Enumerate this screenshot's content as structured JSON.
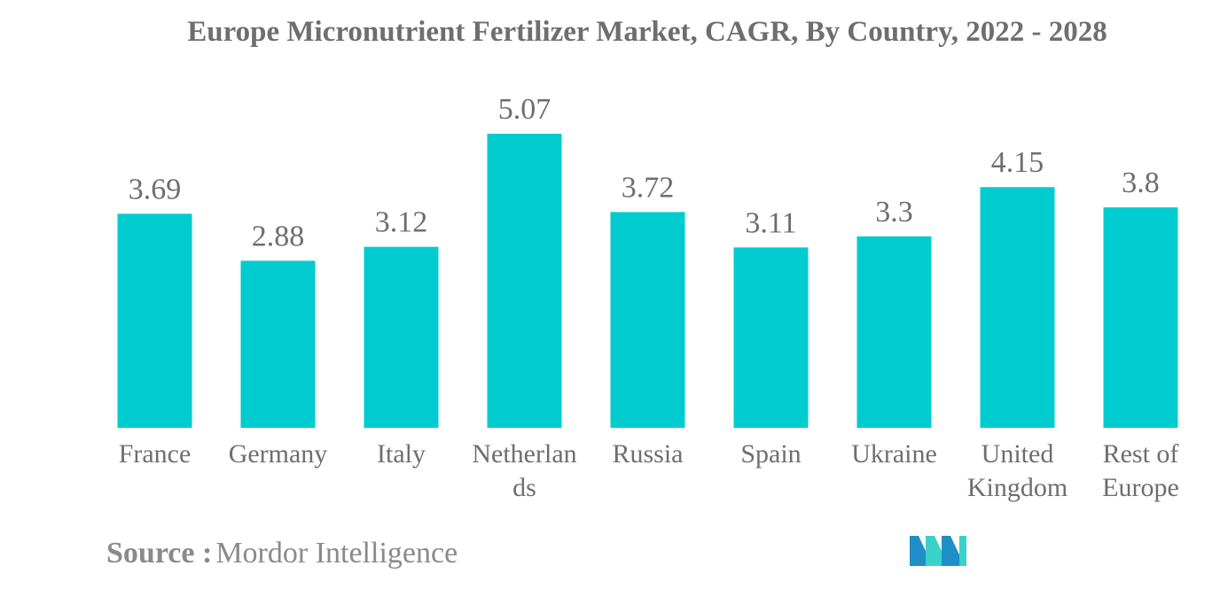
{
  "chart_data": {
    "type": "bar",
    "title": "Europe Micronutrient Fertilizer Market, CAGR, By Country, 2022 - 2028",
    "categories": [
      [
        "France"
      ],
      [
        "Germany"
      ],
      [
        "Italy"
      ],
      [
        "Netherlan",
        "ds"
      ],
      [
        "Russia"
      ],
      [
        "Spain"
      ],
      [
        "Ukraine"
      ],
      [
        "United",
        "Kingdom"
      ],
      [
        "Rest of",
        "Europe"
      ]
    ],
    "values": [
      3.69,
      2.88,
      3.12,
      5.07,
      3.72,
      3.11,
      3.3,
      4.15,
      3.8
    ],
    "value_labels": [
      "3.69",
      "2.88",
      "3.12",
      "5.07",
      "3.72",
      "3.11",
      "3.3",
      "4.15",
      "3.8"
    ],
    "ylim": [
      0,
      5.07
    ],
    "grid": false,
    "legend": "none",
    "bar_color": "#00cccf"
  },
  "source": {
    "label": "Source :",
    "value": "Mordor Intelligence"
  },
  "logo": {
    "icon": "mordor-intelligence-logo-icon",
    "colors": [
      "#1f8fc8",
      "#3ad1c9"
    ]
  }
}
